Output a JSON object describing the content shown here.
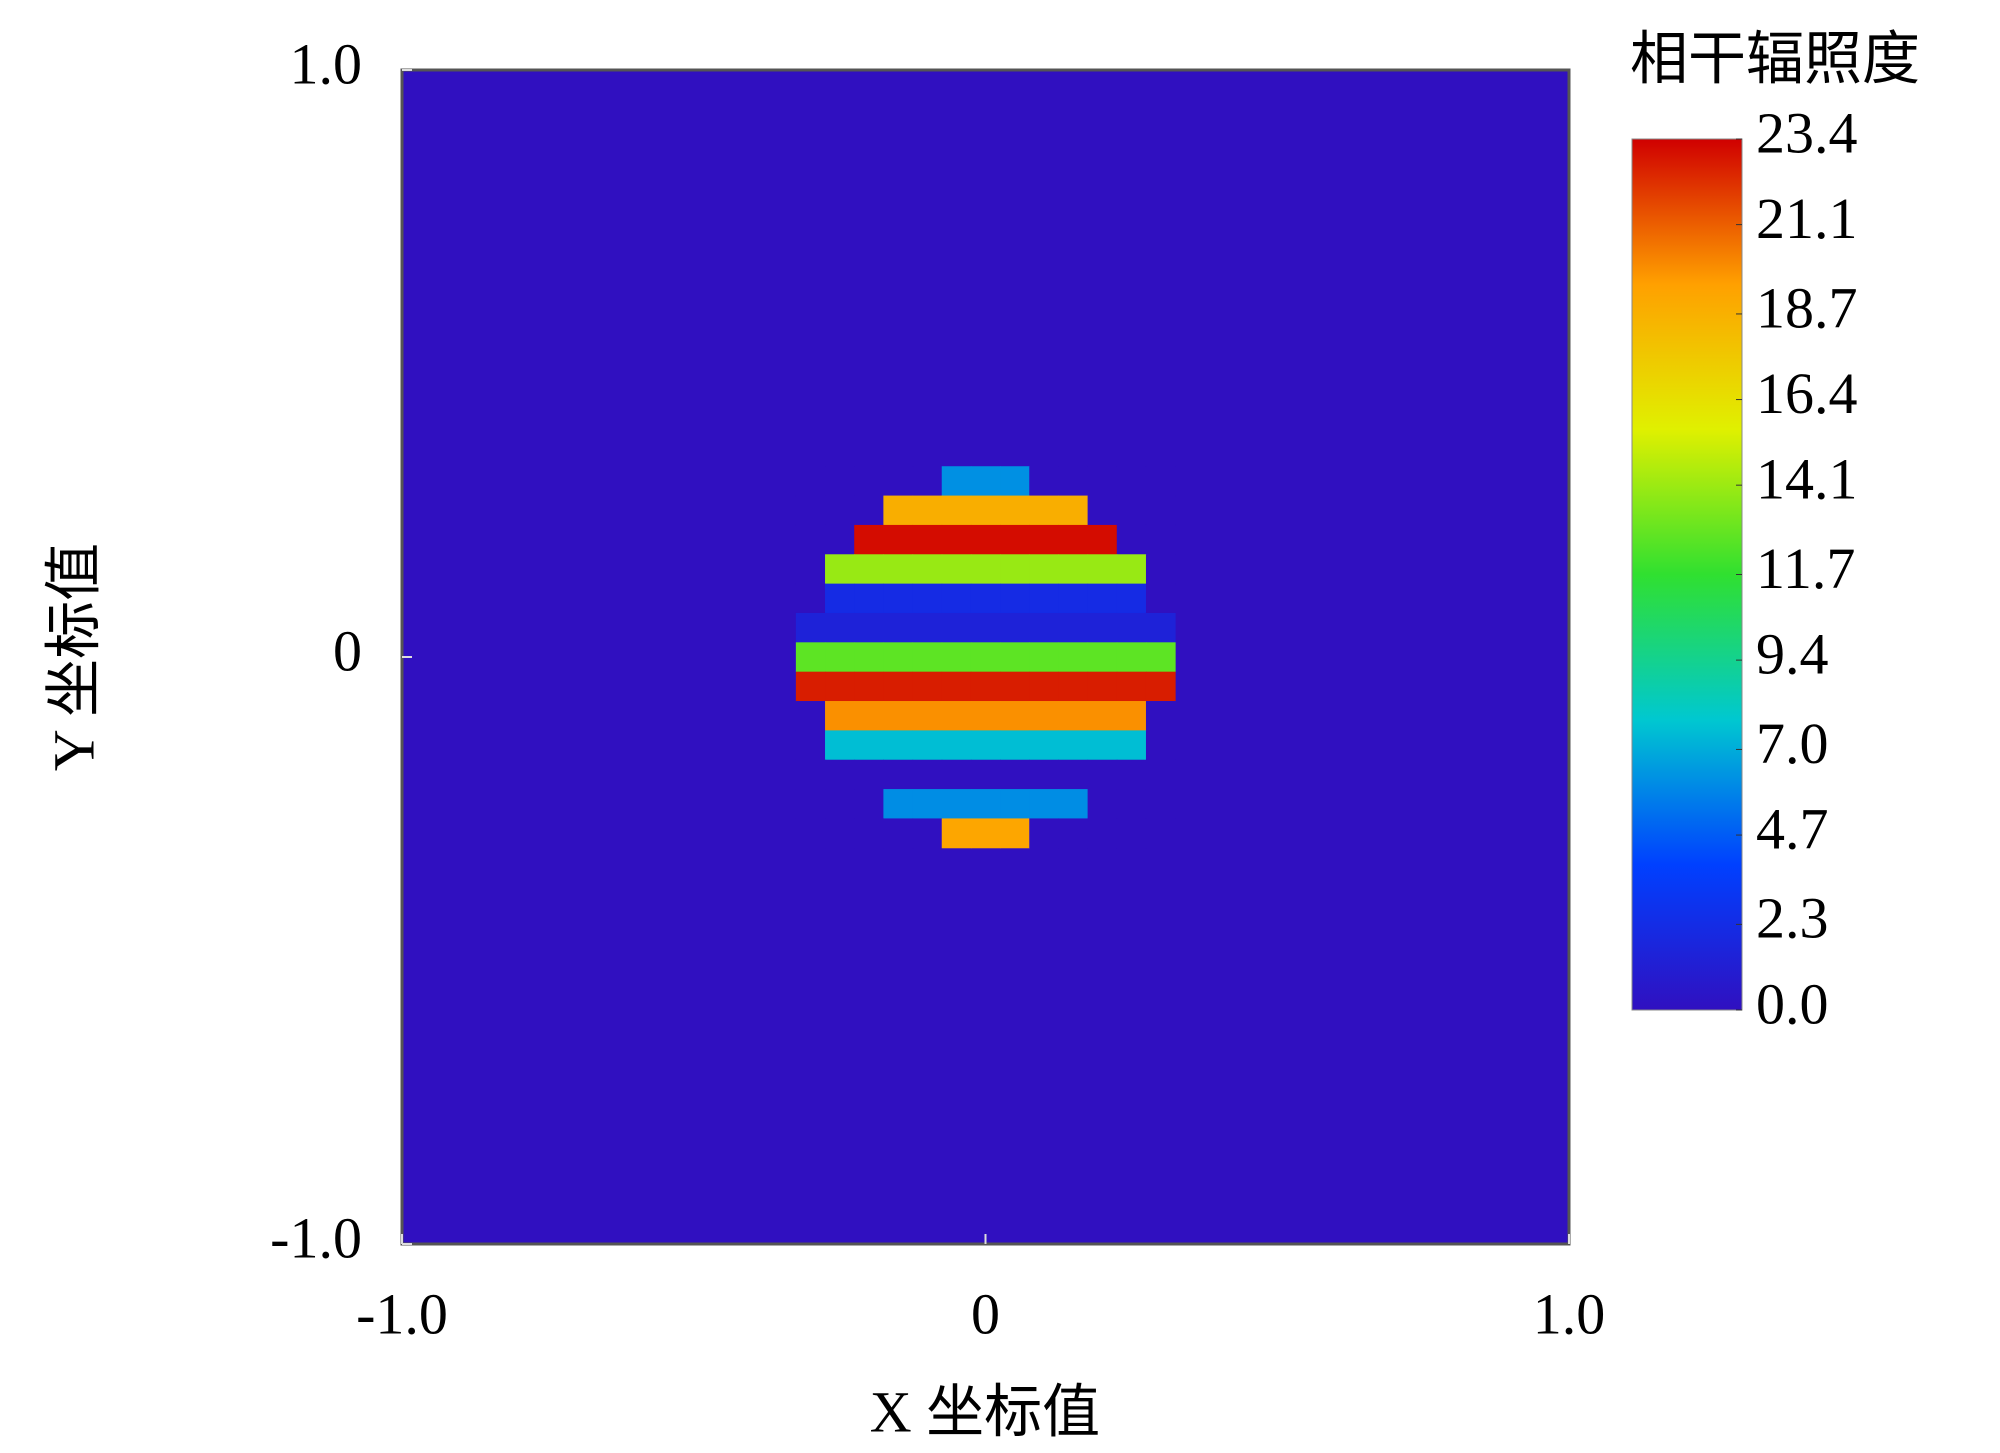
{
  "chart_data": {
    "type": "heatmap",
    "xlabel": "X 坐标值",
    "ylabel": "Y 坐标值",
    "colorbar_title": "相干辐照度",
    "xlim": [
      -1,
      1
    ],
    "ylim": [
      -1,
      1
    ],
    "xticks": [
      {
        "value": -1,
        "label": "-1.0"
      },
      0,
      {
        "value": 1,
        "label": "1.0"
      }
    ],
    "yticks": [
      {
        "value": -1,
        "label": "-1.0"
      },
      0,
      {
        "value": 1,
        "label": "1.0"
      }
    ],
    "x": [
      -0.3,
      -0.25,
      -0.2,
      -0.15,
      -0.1,
      -0.05,
      0,
      0.05,
      0.1,
      0.15,
      0.2,
      0.25,
      0.3
    ],
    "y": [
      0.3,
      0.25,
      0.2,
      0.15,
      0.1,
      0.05,
      0,
      -0.05,
      -0.1,
      -0.15,
      -0.2,
      -0.25,
      -0.3
    ],
    "z": [
      [
        0,
        0,
        0,
        0,
        0,
        6.2,
        6.2,
        6.2,
        0,
        0,
        0,
        0,
        0
      ],
      [
        0,
        0,
        0,
        18.8,
        18.8,
        18.8,
        18.8,
        18.8,
        18.8,
        18.8,
        0,
        0,
        0
      ],
      [
        0,
        0,
        23.1,
        23.1,
        23.1,
        23.1,
        23.1,
        23.1,
        23.1,
        23.1,
        23.1,
        0,
        0
      ],
      [
        0,
        14.0,
        14.0,
        14.0,
        14.0,
        14.0,
        14.0,
        14.0,
        14.0,
        14.0,
        14.0,
        14.0,
        0
      ],
      [
        0,
        2.2,
        2.2,
        2.2,
        2.2,
        2.2,
        2.2,
        2.2,
        2.2,
        2.2,
        2.2,
        2.2,
        0
      ],
      [
        1.5,
        1.5,
        1.5,
        1.5,
        1.5,
        1.5,
        1.5,
        1.5,
        1.5,
        1.5,
        1.5,
        1.5,
        1.5
      ],
      [
        12.7,
        12.7,
        12.7,
        12.7,
        12.7,
        12.7,
        12.7,
        12.7,
        12.7,
        12.7,
        12.7,
        12.7,
        12.7
      ],
      [
        22.7,
        22.7,
        22.7,
        22.7,
        22.7,
        22.7,
        22.7,
        22.7,
        22.7,
        22.7,
        22.7,
        22.7,
        22.7
      ],
      [
        0,
        19.9,
        19.9,
        19.9,
        19.9,
        19.9,
        19.9,
        19.9,
        19.9,
        19.9,
        19.9,
        19.9,
        0
      ],
      [
        0,
        7.5,
        7.5,
        7.5,
        7.5,
        7.5,
        7.5,
        7.5,
        7.5,
        7.5,
        7.5,
        7.5,
        0
      ],
      [
        0,
        0,
        0.0,
        0.0,
        0.0,
        0.0,
        0.0,
        0.0,
        0.0,
        0.0,
        0.0,
        0,
        0
      ],
      [
        0,
        0,
        0,
        6.1,
        6.1,
        6.1,
        6.1,
        6.1,
        6.1,
        6.1,
        0,
        0,
        0
      ],
      [
        0,
        0,
        0,
        0,
        0,
        19.2,
        19.2,
        19.2,
        0,
        0,
        0,
        0,
        0
      ]
    ],
    "clim": [
      0,
      23.4
    ],
    "cticks": [
      {
        "value": 0,
        "label": "0.0"
      },
      2.3,
      4.7,
      {
        "value": 7,
        "label": "7.0"
      },
      9.4,
      11.7,
      14.1,
      16.4,
      18.7,
      21.1,
      23.4
    ],
    "colormap": [
      "#3010c0",
      "#0040ff",
      "#00c8d0",
      "#30e030",
      "#e0f000",
      "#ffa000",
      "#d00000"
    ]
  }
}
